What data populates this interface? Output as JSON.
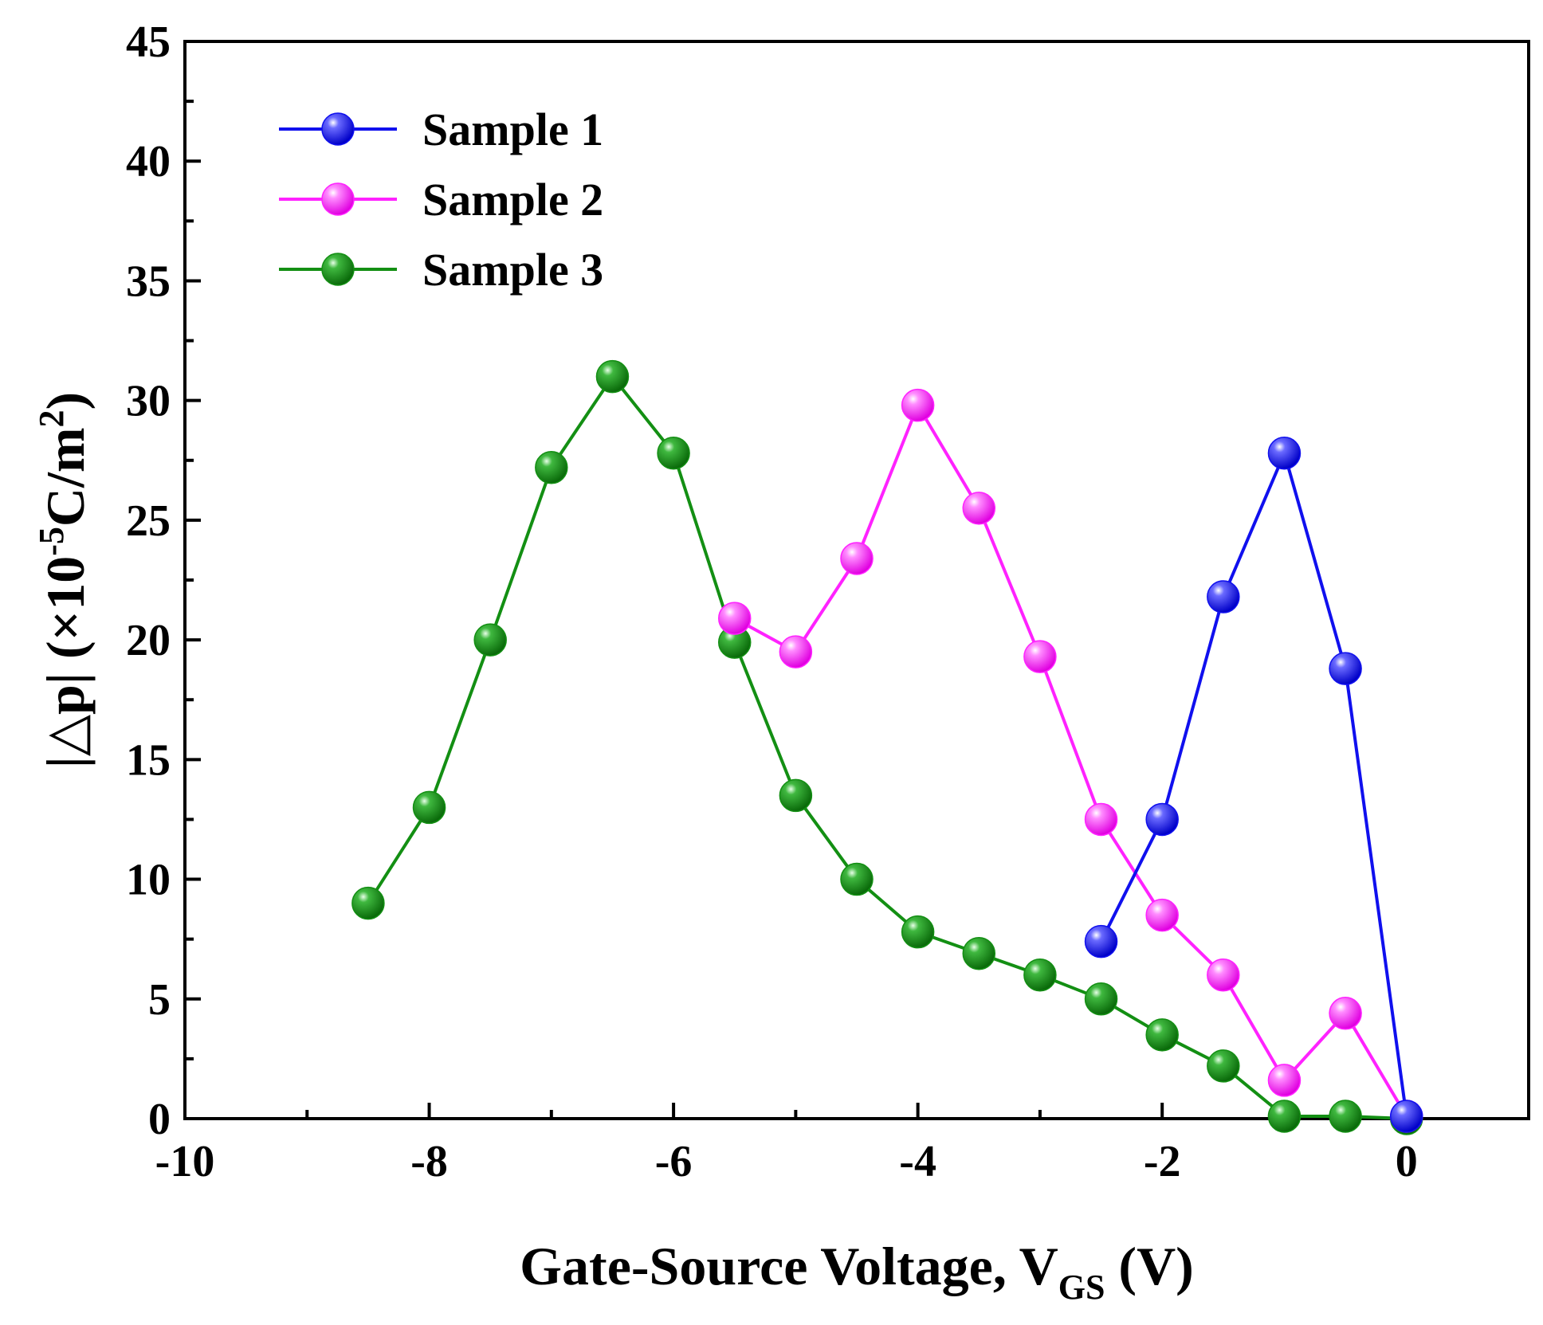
{
  "chart_data": {
    "type": "line",
    "title": "",
    "xlabel": {
      "main": "Gate-Source Voltage, V",
      "subscript": "GS",
      "unit": " (V)"
    },
    "ylabel": {
      "prefix": "|△p|  (×10",
      "exponent": "-5",
      "mid": "C/m",
      "exponent2": "2",
      "suffix": ")"
    },
    "xlim": [
      -10,
      1
    ],
    "ylim": [
      0,
      45
    ],
    "xticks": [
      -10,
      -8,
      -6,
      -4,
      -2,
      0
    ],
    "xtick_labels": [
      "-10",
      "-8",
      "-6",
      "-4",
      "-2",
      "0"
    ],
    "yticks": [
      0,
      5,
      10,
      15,
      20,
      25,
      30,
      35,
      40,
      45
    ],
    "ytick_labels": [
      "0",
      "5",
      "10",
      "15",
      "20",
      "25",
      "30",
      "35",
      "40",
      "45"
    ],
    "grid": false,
    "legend_position": "top-left",
    "series": [
      {
        "name": "Sample 1",
        "color": "#1010ee",
        "x": [
          -2.5,
          -2.0,
          -1.5,
          -1.0,
          -0.5,
          0.0
        ],
        "y": [
          7.4,
          12.5,
          21.8,
          27.8,
          18.8,
          0.1
        ]
      },
      {
        "name": "Sample 2",
        "color": "#ff22ff",
        "x": [
          -5.5,
          -5.0,
          -4.5,
          -4.0,
          -3.5,
          -3.0,
          -2.5,
          -2.0,
          -1.5,
          -1.0,
          -0.5,
          0.0
        ],
        "y": [
          20.9,
          19.5,
          23.4,
          29.8,
          25.5,
          19.3,
          12.5,
          8.5,
          6.0,
          1.6,
          4.4,
          0.1
        ]
      },
      {
        "name": "Sample 3",
        "color": "#138f13",
        "x": [
          -8.5,
          -8.0,
          -7.5,
          -7.0,
          -6.5,
          -6.0,
          -5.5,
          -5.0,
          -4.5,
          -4.0,
          -3.5,
          -3.0,
          -2.5,
          -2.0,
          -1.5,
          -1.0,
          -0.5,
          0.0
        ],
        "y": [
          9.0,
          13.0,
          20.0,
          27.2,
          31.0,
          27.8,
          19.9,
          13.5,
          10.0,
          7.8,
          6.9,
          6.0,
          5.0,
          3.5,
          2.2,
          0.1,
          0.1,
          0.0
        ]
      }
    ]
  }
}
